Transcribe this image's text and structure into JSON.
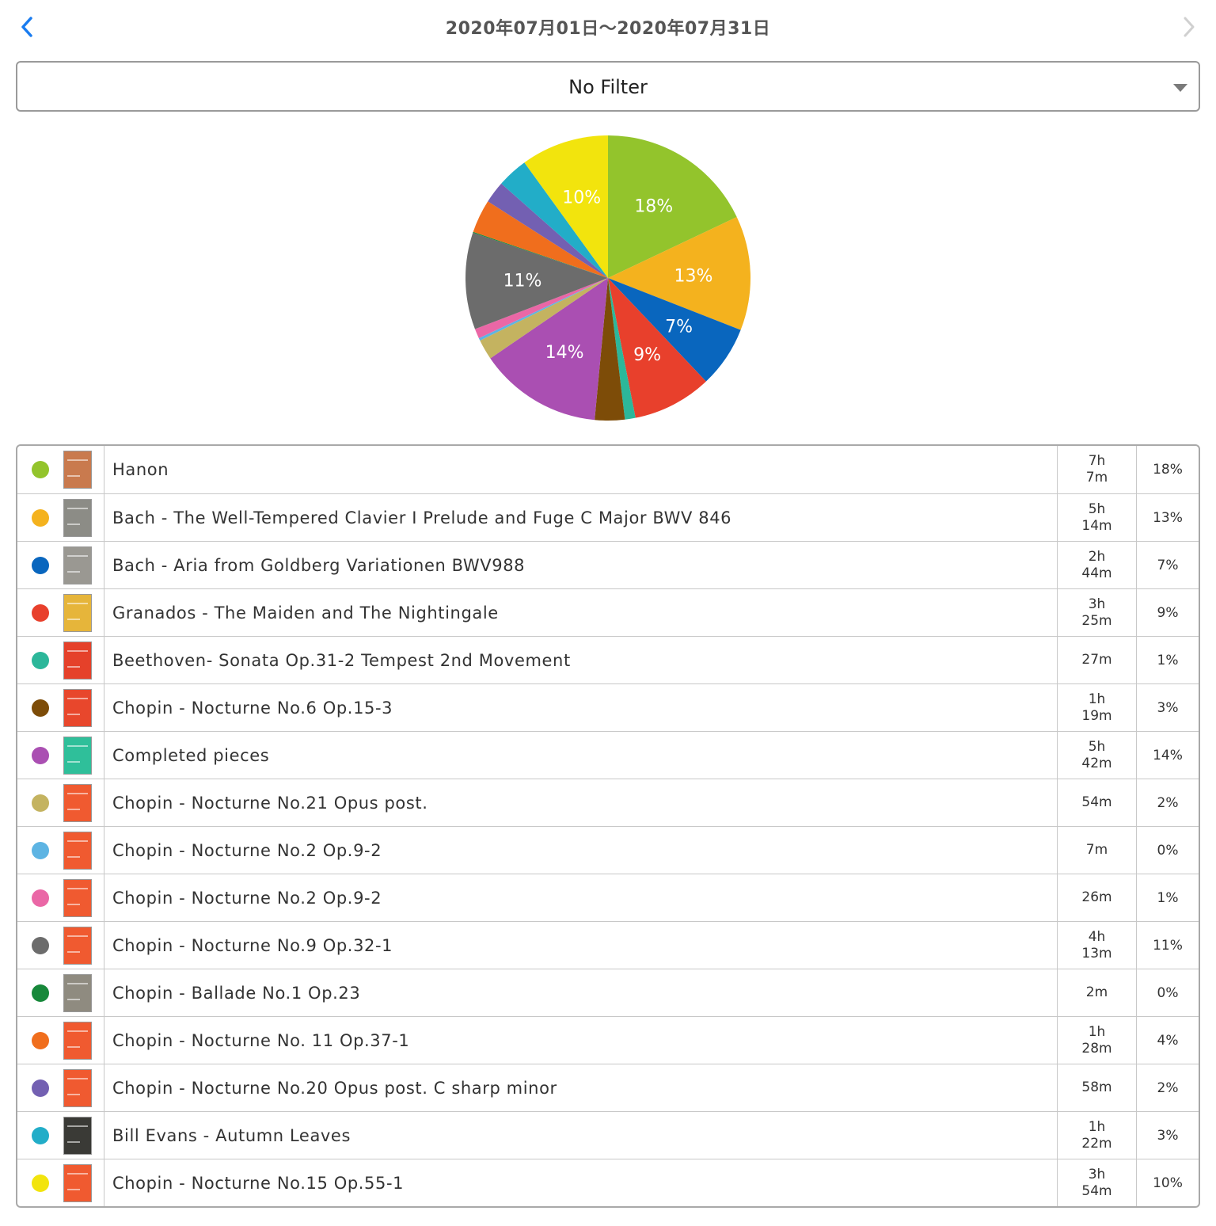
{
  "header": {
    "title": "2020年07月01日〜2020年07月31日",
    "prev_icon": "chevron-left-icon",
    "next_icon": "chevron-right-icon",
    "accent_color": "#1a7cf0",
    "disabled_color": "#d0d0d0"
  },
  "filter": {
    "label": "No Filter",
    "icon": "caret-down-icon"
  },
  "chart_data": {
    "type": "pie",
    "title": "",
    "slices": [
      {
        "label": "Hanon",
        "value": 18,
        "color": "#93c42c",
        "data_label": "18%"
      },
      {
        "label": "Bach - The Well-Tempered Clavier I Prelude and Fuge C Major BWV 846",
        "value": 13,
        "color": "#f4b21e",
        "data_label": "13%"
      },
      {
        "label": "Bach - Aria from Goldberg Variationen BWV988",
        "value": 7,
        "color": "#0966be",
        "data_label": "7%"
      },
      {
        "label": "Granados - The Maiden and The Nightingale",
        "value": 9,
        "color": "#e8402c",
        "data_label": "9%"
      },
      {
        "label": "Beethoven- Sonata Op.31-2 Tempest 2nd Movement",
        "value": 1.2,
        "color": "#2cb79a",
        "data_label": ""
      },
      {
        "label": "Chopin - Nocturne No.6 Op.15-3",
        "value": 3.4,
        "color": "#7d4c08",
        "data_label": ""
      },
      {
        "label": "Completed pieces",
        "value": 14,
        "color": "#aa4fb2",
        "data_label": "14%"
      },
      {
        "label": "Chopin - Nocturne No.21 Opus post.",
        "value": 2.3,
        "color": "#c4b360",
        "data_label": ""
      },
      {
        "label": "Chopin - Nocturne No.2 Op.9-2",
        "value": 0.3,
        "color": "#5db4e3",
        "data_label": ""
      },
      {
        "label": "Chopin - Nocturne No.2 Op.9-2",
        "value": 1.1,
        "color": "#ea67a6",
        "data_label": ""
      },
      {
        "label": "Chopin - Nocturne No.9 Op.32-1",
        "value": 11,
        "color": "#6c6c6c",
        "data_label": "11%"
      },
      {
        "label": "Chopin - Ballade No.1 Op.23",
        "value": 0.1,
        "color": "#17883a",
        "data_label": ""
      },
      {
        "label": "Chopin - Nocturne No. 11 Op.37-1",
        "value": 3.8,
        "color": "#f06e1d",
        "data_label": ""
      },
      {
        "label": "Chopin - Nocturne No.20 Opus post. C sharp minor",
        "value": 2.5,
        "color": "#7360b2",
        "data_label": ""
      },
      {
        "label": "Bill Evans - Autumn Leaves",
        "value": 3.5,
        "color": "#22adc8",
        "data_label": ""
      },
      {
        "label": "Chopin - Nocturne No.15 Op.55-1",
        "value": 10,
        "color": "#f2e40d",
        "data_label": "10%"
      }
    ]
  },
  "rows": [
    {
      "name": "Hanon",
      "hours": "7h",
      "minutes": "7m",
      "percent": "18%",
      "color": "#93c42c",
      "thumb_color": "#c97a4e"
    },
    {
      "name": "Bach - The Well-Tempered Clavier I Prelude and Fuge C Major BWV 846",
      "hours": "5h",
      "minutes": "14m",
      "percent": "13%",
      "color": "#f4b21e",
      "thumb_color": "#8c8c86"
    },
    {
      "name": "Bach - Aria from Goldberg Variationen BWV988",
      "hours": "2h",
      "minutes": "44m",
      "percent": "7%",
      "color": "#0966be",
      "thumb_color": "#9a9892"
    },
    {
      "name": "Granados - The Maiden and The Nightingale",
      "hours": "3h",
      "minutes": "25m",
      "percent": "9%",
      "color": "#e8402c",
      "thumb_color": "#e6b53a"
    },
    {
      "name": "Beethoven- Sonata Op.31-2 Tempest 2nd Movement",
      "hours": "",
      "minutes": "27m",
      "percent": "1%",
      "color": "#2cb79a",
      "thumb_color": "#e5412a"
    },
    {
      "name": "Chopin - Nocturne No.6 Op.15-3",
      "hours": "1h",
      "minutes": "19m",
      "percent": "3%",
      "color": "#7d4c08",
      "thumb_color": "#e8472c"
    },
    {
      "name": "Completed pieces",
      "hours": "5h",
      "minutes": "42m",
      "percent": "14%",
      "color": "#aa4fb2",
      "thumb_color": "#2fbf9a"
    },
    {
      "name": "Chopin - Nocturne No.21 Opus post.",
      "hours": "",
      "minutes": "54m",
      "percent": "2%",
      "color": "#c4b360",
      "thumb_color": "#f05a30"
    },
    {
      "name": "Chopin - Nocturne No.2 Op.9-2",
      "hours": "",
      "minutes": "7m",
      "percent": "0%",
      "color": "#5db4e3",
      "thumb_color": "#f05a30"
    },
    {
      "name": "Chopin - Nocturne No.2 Op.9-2",
      "hours": "",
      "minutes": "26m",
      "percent": "1%",
      "color": "#ea67a6",
      "thumb_color": "#f05a30"
    },
    {
      "name": "Chopin - Nocturne No.9 Op.32-1",
      "hours": "4h",
      "minutes": "13m",
      "percent": "11%",
      "color": "#6c6c6c",
      "thumb_color": "#f05a30"
    },
    {
      "name": "Chopin - Ballade No.1 Op.23",
      "hours": "",
      "minutes": "2m",
      "percent": "0%",
      "color": "#17883a",
      "thumb_color": "#8f8b80"
    },
    {
      "name": "Chopin - Nocturne No. 11 Op.37-1",
      "hours": "1h",
      "minutes": "28m",
      "percent": "4%",
      "color": "#f06e1d",
      "thumb_color": "#f05a30"
    },
    {
      "name": "Chopin - Nocturne No.20 Opus post. C sharp minor",
      "hours": "",
      "minutes": "58m",
      "percent": "2%",
      "color": "#7360b2",
      "thumb_color": "#f05a30"
    },
    {
      "name": "Bill Evans - Autumn Leaves",
      "hours": "1h",
      "minutes": "22m",
      "percent": "3%",
      "color": "#22adc8",
      "thumb_color": "#3a3a36"
    },
    {
      "name": "Chopin - Nocturne No.15 Op.55-1",
      "hours": "3h",
      "minutes": "54m",
      "percent": "10%",
      "color": "#f2e40d",
      "thumb_color": "#f05a30"
    }
  ]
}
